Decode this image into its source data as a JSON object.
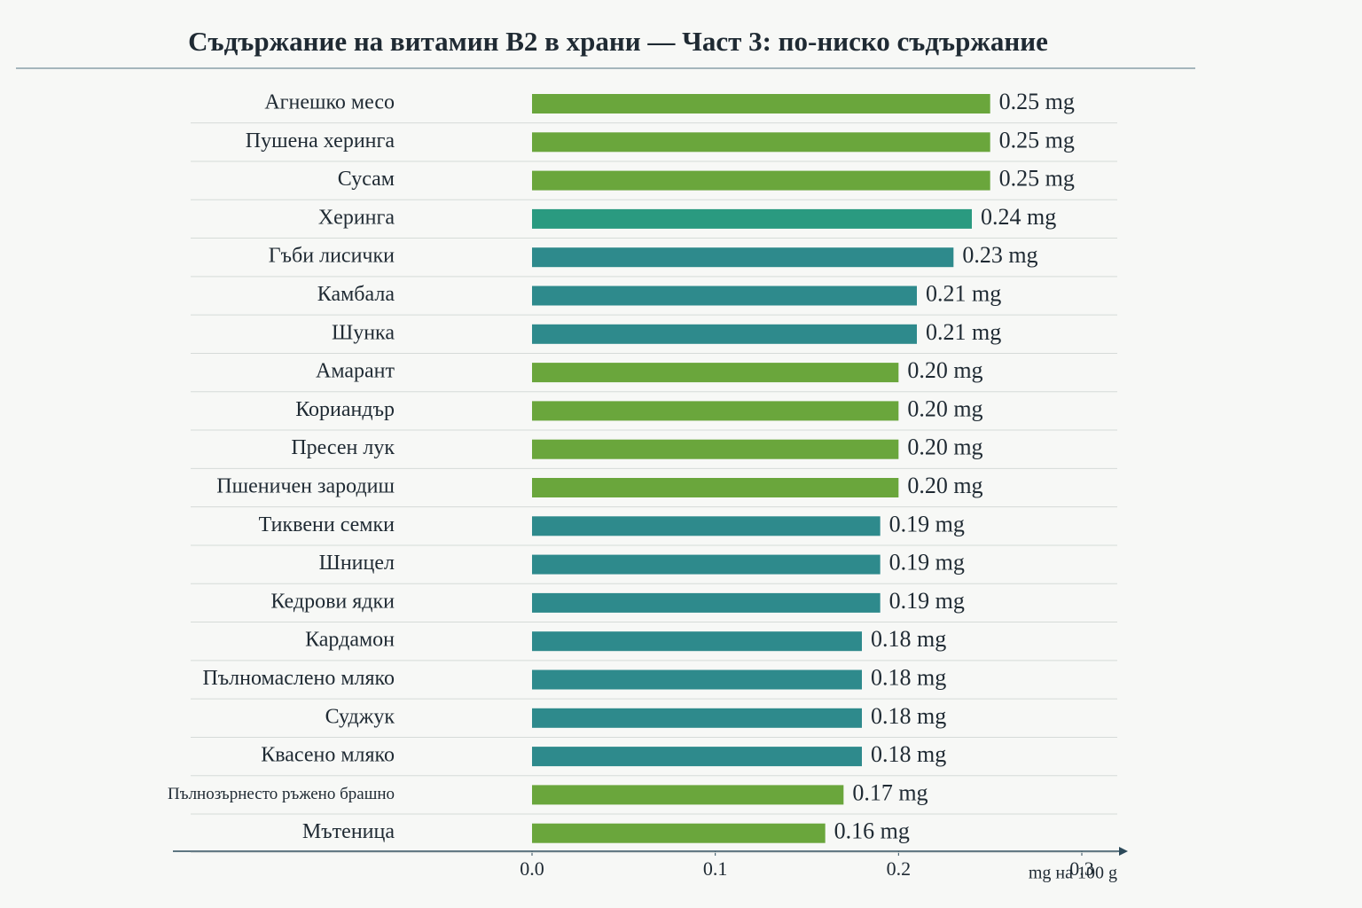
{
  "chart_data": {
    "type": "bar",
    "orientation": "horizontal",
    "title": "Съдържание на витамин B2 в храни — Част 3: по-ниско съдържание",
    "x_label": "mg на 100 g",
    "categories": [
      "Агнешко месо",
      "Пушена херинга",
      "Сусам",
      "Херинга",
      "Гъби лисички",
      "Камбала",
      "Шунка",
      "Амарант",
      "Кориандър",
      "Пресен лук",
      "Пшеничен зародиш",
      "Тиквени семки",
      "Шницел",
      "Кедрови ядки",
      "Кардамон",
      "Пълномаслено мляко",
      "Суджук",
      "Квасено мляко",
      "Пълнозърнесто ръжено брашно",
      "Мътеница"
    ],
    "values": [
      0.25,
      0.25,
      0.25,
      0.24,
      0.23,
      0.21,
      0.21,
      0.2,
      0.2,
      0.2,
      0.2,
      0.19,
      0.19,
      0.19,
      0.18,
      0.18,
      0.18,
      0.18,
      0.17,
      0.16
    ],
    "value_labels": [
      "0.25 mg",
      "0.25 mg",
      "0.25 mg",
      "0.24 mg",
      "0.23 mg",
      "0.21 mg",
      "0.21 mg",
      "0.20 mg",
      "0.20 mg",
      "0.20 mg",
      "0.20 mg",
      "0.19 mg",
      "0.19 mg",
      "0.19 mg",
      "0.18 mg",
      "0.18 mg",
      "0.18 mg",
      "0.18 mg",
      "0.17 mg",
      "0.16 mg"
    ],
    "colors": [
      "#6aa63c",
      "#6aa63c",
      "#6aa63c",
      "#2a9a80",
      "#2e8a8c",
      "#2e8a8c",
      "#2e8a8c",
      "#6aa63c",
      "#6aa63c",
      "#6aa63c",
      "#6aa63c",
      "#2e8a8c",
      "#2e8a8c",
      "#2e8a8c",
      "#2e8a8c",
      "#2e8a8c",
      "#2e8a8c",
      "#2e8a8c",
      "#6aa63c",
      "#6aa63c"
    ],
    "xlim": [
      0,
      0.3
    ],
    "xticks": [
      {
        "value": 0,
        "label": "0.0"
      },
      0.1,
      0.2,
      0.3
    ]
  }
}
